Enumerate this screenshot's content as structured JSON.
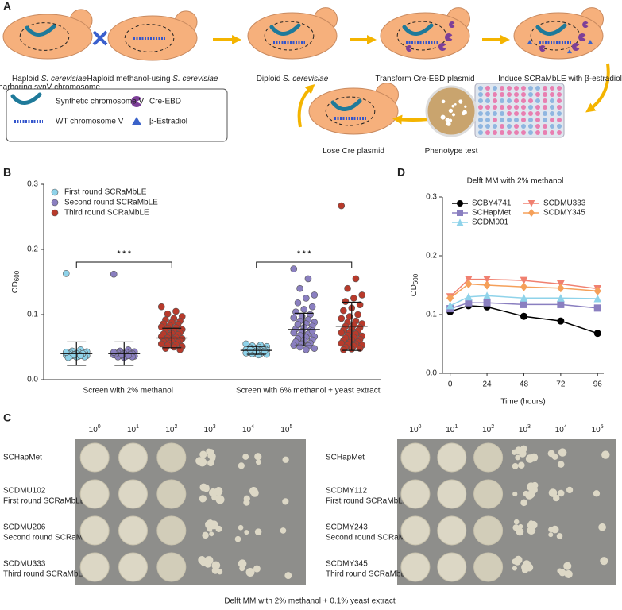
{
  "panel_a": {
    "letter": "A",
    "steps": [
      {
        "parts": [
          "Haploid ",
          "S. cerevisiae"
        ],
        "line2": "harboring synV chromosome"
      },
      {
        "parts": [
          "Haploid methanol-using ",
          "S. cerevisiae"
        ]
      },
      {
        "parts": [
          "Diploid ",
          "S. cerevisiae"
        ]
      },
      {
        "parts": [
          "Transform Cre-EBD plasmid"
        ]
      },
      {
        "parts": [
          "Induce SCRaMbLE with β-estradiol"
        ]
      },
      {
        "parts": [
          "Phenotype test"
        ]
      },
      {
        "parts": [
          "Lose Cre plasmid"
        ]
      }
    ],
    "legend": [
      "Synthetic chromosome V",
      "WT chromosome V",
      "Cre-EBD",
      "β-Estradiol"
    ]
  },
  "chart_data": [
    {
      "type": "strip",
      "panel": "B",
      "ylabel": "OD",
      "ylabel_sub": "600",
      "categories": [
        "Screen with 2% methanol",
        "Screen with 6% methanol + yeast extract"
      ],
      "ylim": [
        0,
        0.3
      ],
      "yticks": [
        {
          "value": 0,
          "label": "0.0"
        },
        0.1,
        0.2,
        0.3
      ],
      "series": [
        {
          "name": "First round SCRaMbLE",
          "color": "#8fd3ea",
          "values": [
            [
              0.163,
              0.046,
              0.044,
              0.043,
              0.042,
              0.041,
              0.041,
              0.04,
              0.04,
              0.039,
              0.039,
              0.038,
              0.038,
              0.037,
              0.037,
              0.036,
              0.036,
              0.035,
              0.035,
              0.034,
              0.04,
              0.038,
              0.042,
              0.037
            ],
            [
              0.055,
              0.053,
              0.052,
              0.051,
              0.05,
              0.049,
              0.048,
              0.048,
              0.047,
              0.047,
              0.046,
              0.046,
              0.045,
              0.045,
              0.045,
              0.044,
              0.044,
              0.043,
              0.043,
              0.042,
              0.042,
              0.041,
              0.041,
              0.04,
              0.04,
              0.039,
              0.038,
              0.046,
              0.044,
              0.043
            ]
          ],
          "mean": [
            0.04,
            0.045
          ],
          "error": [
            0.018,
            0.006
          ]
        },
        {
          "name": "Second round SCRaMbLE",
          "color": "#8a7fc0",
          "values": [
            [
              0.162,
              0.046,
              0.044,
              0.043,
              0.042,
              0.041,
              0.04,
              0.04,
              0.039,
              0.039,
              0.038,
              0.038,
              0.037,
              0.037,
              0.036,
              0.036,
              0.035,
              0.035,
              0.034,
              0.04,
              0.039,
              0.038,
              0.042,
              0.037
            ],
            [
              0.17,
              0.155,
              0.14,
              0.13,
              0.125,
              0.118,
              0.112,
              0.108,
              0.104,
              0.1,
              0.097,
              0.095,
              0.092,
              0.09,
              0.088,
              0.086,
              0.084,
              0.082,
              0.08,
              0.078,
              0.076,
              0.074,
              0.072,
              0.07,
              0.068,
              0.066,
              0.065,
              0.063,
              0.061,
              0.06,
              0.058,
              0.056,
              0.055,
              0.053,
              0.052,
              0.05,
              0.048,
              0.046,
              0.085,
              0.075
            ]
          ],
          "mean": [
            0.04,
            0.077
          ],
          "error": [
            0.018,
            0.025
          ]
        },
        {
          "name": "Third round SCRaMbLE",
          "color": "#b83a2b",
          "values": [
            [
              0.112,
              0.105,
              0.101,
              0.097,
              0.094,
              0.092,
              0.09,
              0.088,
              0.086,
              0.085,
              0.083,
              0.081,
              0.08,
              0.079,
              0.077,
              0.075,
              0.074,
              0.072,
              0.071,
              0.07,
              0.069,
              0.068,
              0.066,
              0.065,
              0.064,
              0.063,
              0.062,
              0.061,
              0.06,
              0.059,
              0.058,
              0.057,
              0.056,
              0.055,
              0.054,
              0.053,
              0.051,
              0.05,
              0.048,
              0.046
            ],
            [
              0.267,
              0.155,
              0.14,
              0.13,
              0.125,
              0.12,
              0.115,
              0.11,
              0.106,
              0.1,
              0.097,
              0.094,
              0.09,
              0.088,
              0.086,
              0.084,
              0.082,
              0.08,
              0.078,
              0.076,
              0.075,
              0.073,
              0.072,
              0.07,
              0.068,
              0.067,
              0.065,
              0.064,
              0.062,
              0.061,
              0.06,
              0.058,
              0.057,
              0.056,
              0.055,
              0.054,
              0.053,
              0.052,
              0.05,
              0.048,
              0.047,
              0.046
            ]
          ],
          "mean": [
            0.064,
            0.082
          ],
          "error": [
            0.015,
            0.037
          ]
        }
      ],
      "annotations": [
        {
          "text": "* * *",
          "category": 0
        },
        {
          "text": "* * *",
          "category": 1
        }
      ]
    },
    {
      "type": "line",
      "panel": "D",
      "title": "Delft MM with 2% methanol",
      "xlabel": "Time (hours)",
      "ylabel": "OD",
      "ylabel_sub": "600",
      "x": [
        0,
        12,
        24,
        48,
        72,
        96
      ],
      "xlim": [
        -5,
        100
      ],
      "xticks": [
        0,
        24,
        48,
        72,
        96
      ],
      "ylim": [
        0,
        0.3
      ],
      "yticks": [
        {
          "value": 0,
          "label": "0.0"
        },
        0.1,
        0.2,
        0.3
      ],
      "series": [
        {
          "name": "SCBY4741",
          "color": "#000000",
          "marker": "circle",
          "values": [
            0.105,
            0.115,
            0.113,
            0.097,
            0.089,
            0.068
          ]
        },
        {
          "name": "SCHapMet",
          "color": "#8a7fc0",
          "marker": "square",
          "values": [
            0.11,
            0.12,
            0.12,
            0.117,
            0.117,
            0.111
          ]
        },
        {
          "name": "SCDM001",
          "color": "#8fd3ea",
          "marker": "triangle-up",
          "values": [
            0.115,
            0.13,
            0.132,
            0.128,
            0.128,
            0.127
          ]
        },
        {
          "name": "SCDMU333",
          "color": "#f08070",
          "marker": "triangle-down",
          "values": [
            0.13,
            0.16,
            0.16,
            0.158,
            0.152,
            0.144
          ]
        },
        {
          "name": "SCDMY345",
          "color": "#f5a05a",
          "marker": "diamond",
          "values": [
            0.128,
            0.152,
            0.15,
            0.147,
            0.145,
            0.14
          ]
        }
      ]
    }
  ],
  "panel_c": {
    "letter": "C",
    "caption": "Delft MM with 2% methanol + 0.1% yeast extract",
    "plates": [
      {
        "dilutions": [
          {
            "base": "10",
            "exp": "0"
          },
          {
            "base": "10",
            "exp": "1"
          },
          {
            "base": "10",
            "exp": "2"
          },
          {
            "base": "10",
            "exp": "3"
          },
          {
            "base": "10",
            "exp": "4"
          },
          {
            "base": "10",
            "exp": "5"
          }
        ],
        "rows": [
          {
            "name": "SCHapMet"
          },
          {
            "name": "SCDMU102",
            "note": "First round SCRaMbLE"
          },
          {
            "name": "SCDMU206",
            "note": "Second round SCRaMbLE"
          },
          {
            "name": "SCDMU333",
            "note": "Third round SCRaMbLE"
          }
        ]
      },
      {
        "dilutions": [
          {
            "base": "10",
            "exp": "0"
          },
          {
            "base": "10",
            "exp": "1"
          },
          {
            "base": "10",
            "exp": "2"
          },
          {
            "base": "10",
            "exp": "3"
          },
          {
            "base": "10",
            "exp": "4"
          },
          {
            "base": "10",
            "exp": "5"
          }
        ],
        "rows": [
          {
            "name": "SCHapMet"
          },
          {
            "name": "SCDMY112",
            "note": "First round SCRaMbLE"
          },
          {
            "name": "SCDMY243",
            "note": "Second round SCRaMbLE"
          },
          {
            "name": "SCDMY345",
            "note": "Third round SCRaMbLE"
          }
        ]
      }
    ]
  }
}
